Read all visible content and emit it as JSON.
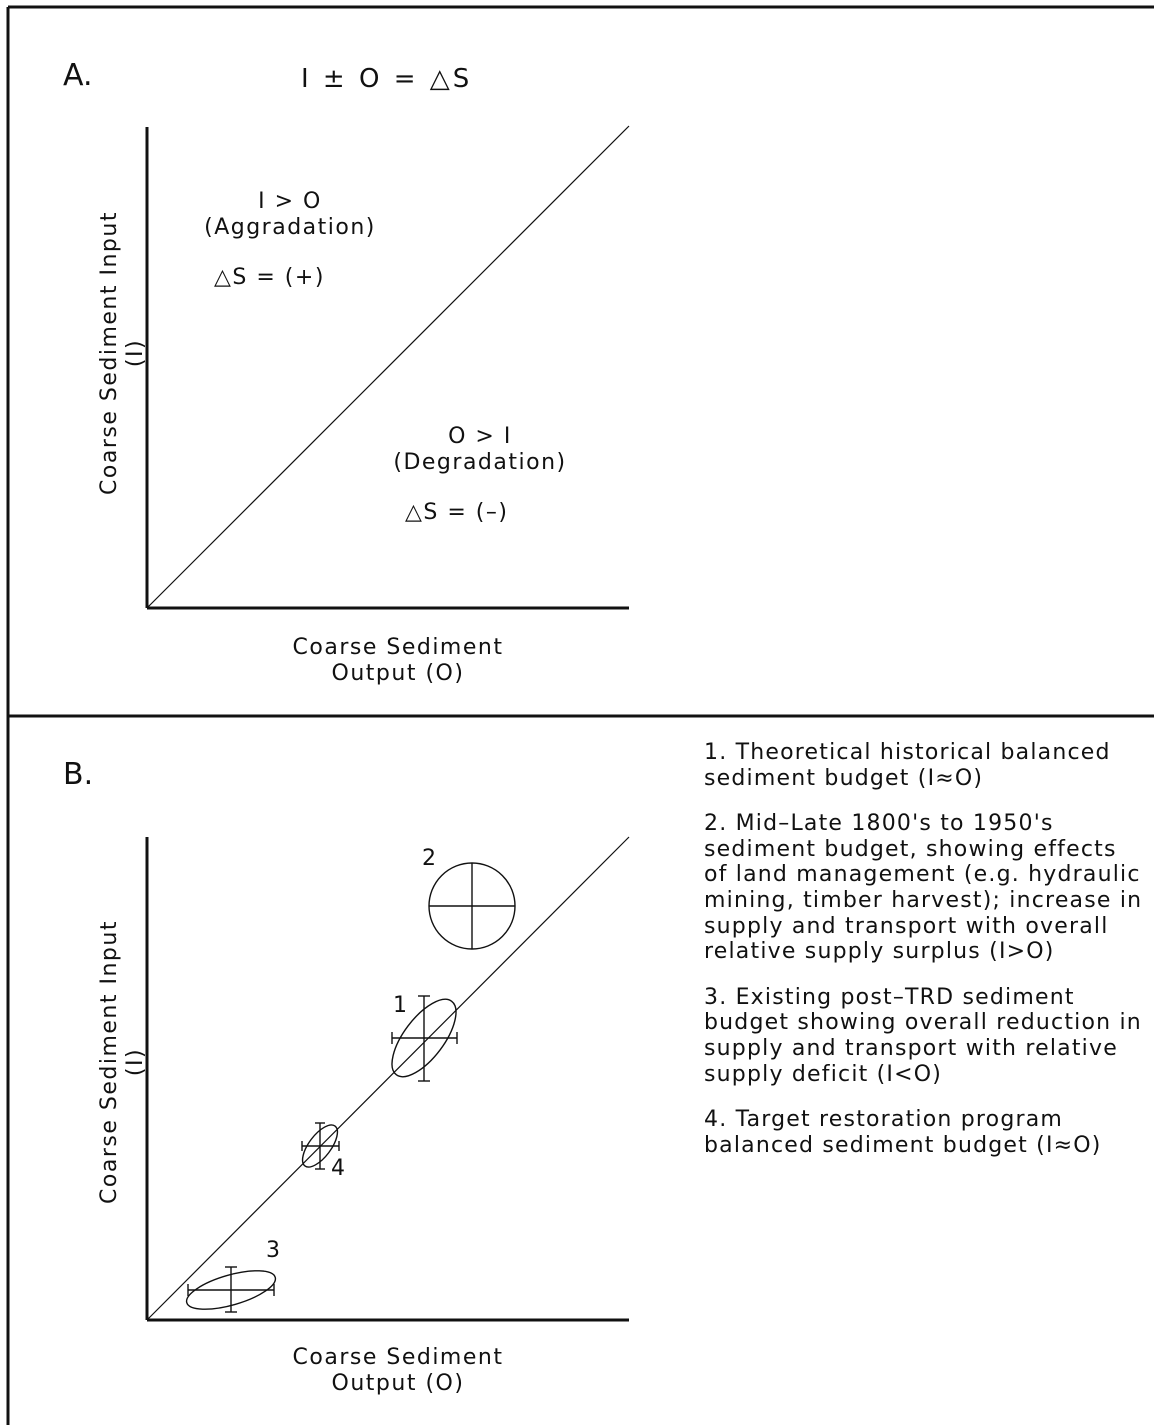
{
  "panel_a": {
    "label": "A.",
    "equation": "I ± O = △S",
    "aggradation": {
      "line1": "I > O",
      "line2": "(Aggradation)",
      "delta": "△S = (+)"
    },
    "degradation": {
      "line1": "O > I",
      "line2": "(Degradation)",
      "delta": "△S = (–)"
    },
    "x_axis": {
      "line1": "Coarse Sediment",
      "line2": "Output (O)"
    },
    "y_axis": {
      "line1": "Coarse Sediment Input",
      "line2": "(I)"
    }
  },
  "panel_b": {
    "label": "B.",
    "x_axis": {
      "line1": "Coarse Sediment",
      "line2": "Output (O)"
    },
    "y_axis": {
      "line1": "Coarse Sediment Input",
      "line2": "(I)"
    },
    "markers": [
      {
        "id": "1",
        "label": "1"
      },
      {
        "id": "2",
        "label": "2"
      },
      {
        "id": "3",
        "label": "3"
      },
      {
        "id": "4",
        "label": "4"
      }
    ],
    "legend": [
      "1. Theoretical historical balanced sediment budget (I≈O)",
      "2. Mid–Late 1800's to 1950's sediment budget, showing effects of land management (e.g. hydraulic mining, timber harvest); increase in supply and transport with overall relative supply surplus (I>O)",
      "3. Existing post–TRD sediment budget showing overall reduction in supply and transport with relative supply deficit (I<O)",
      "4. Target restoration program balanced sediment budget (I≈O)"
    ]
  }
}
